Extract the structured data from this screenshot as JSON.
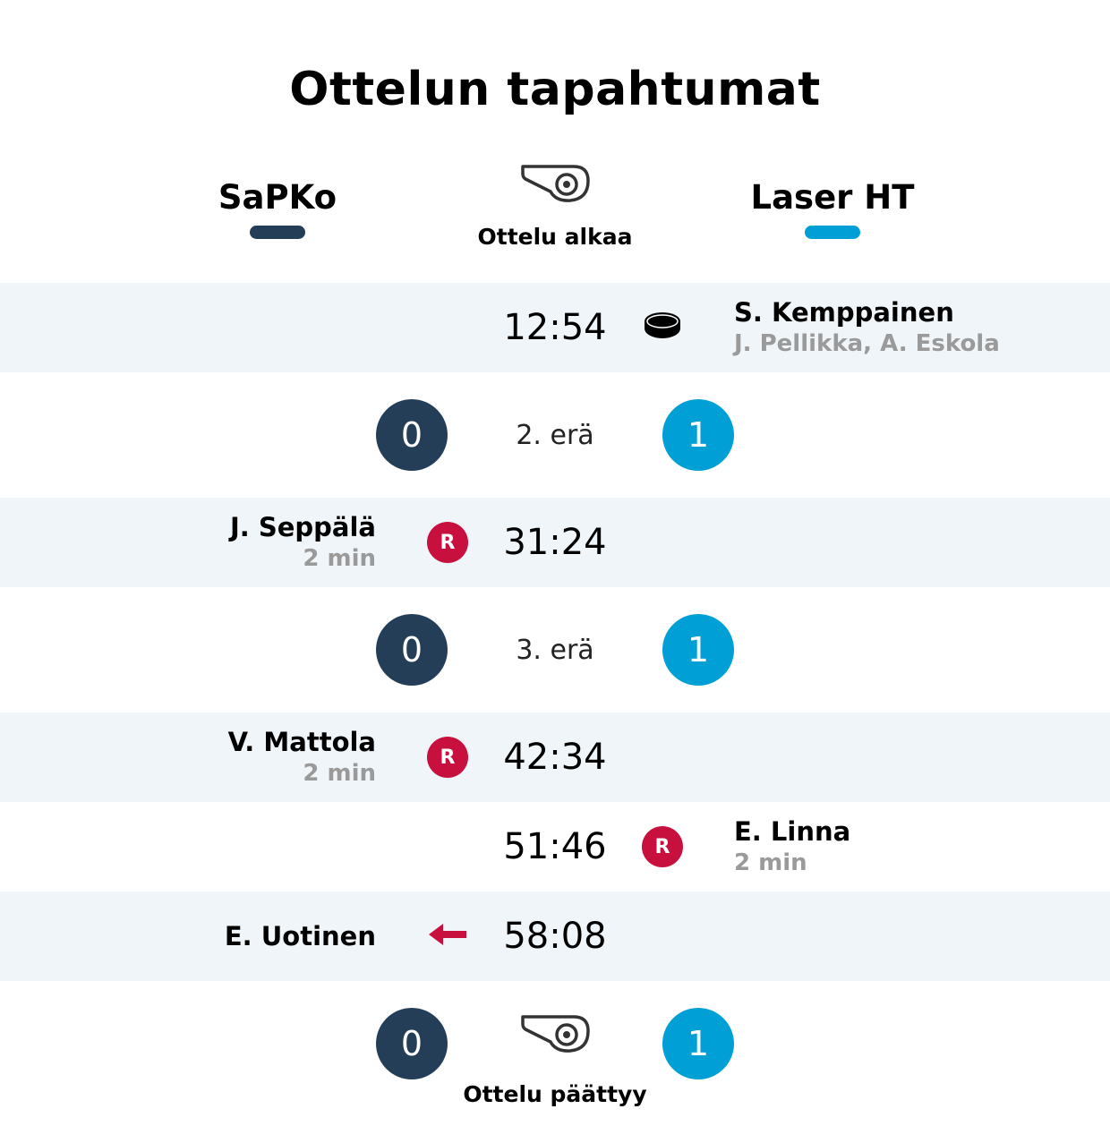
{
  "title": "Ottelun tapahtumat",
  "colors": {
    "home": "#243e57",
    "away": "#009fd6",
    "penalty": "#c8103e",
    "row_shade": "#eff5f8"
  },
  "teams": {
    "home": "SaPKo",
    "away": "Laser HT"
  },
  "match_start": {
    "label": "Ottelu alkaa",
    "icon": "whistle-icon"
  },
  "events": [
    {
      "type": "goal",
      "side": "away",
      "time": "12:54",
      "player": "S. Kemppainen",
      "detail": "J. Pellikka, A. Eskola",
      "icon": "puck-icon"
    },
    {
      "type": "penalty",
      "side": "home",
      "time": "31:24",
      "player": "J. Seppälä",
      "detail": "2 min",
      "badge": "R"
    },
    {
      "type": "penalty",
      "side": "home",
      "time": "42:34",
      "player": "V. Mattola",
      "detail": "2 min",
      "badge": "R"
    },
    {
      "type": "penalty",
      "side": "away",
      "time": "51:46",
      "player": "E. Linna",
      "detail": "2 min",
      "badge": "R"
    },
    {
      "type": "goalie-out",
      "side": "home",
      "time": "58:08",
      "player": "E. Uotinen",
      "icon": "arrow-left-icon"
    }
  ],
  "periods": [
    {
      "label": "2. erä",
      "home_score": "0",
      "away_score": "1"
    },
    {
      "label": "3. erä",
      "home_score": "0",
      "away_score": "1"
    }
  ],
  "match_end": {
    "label": "Ottelu päättyy",
    "home_score": "0",
    "away_score": "1",
    "icon": "whistle-icon"
  }
}
